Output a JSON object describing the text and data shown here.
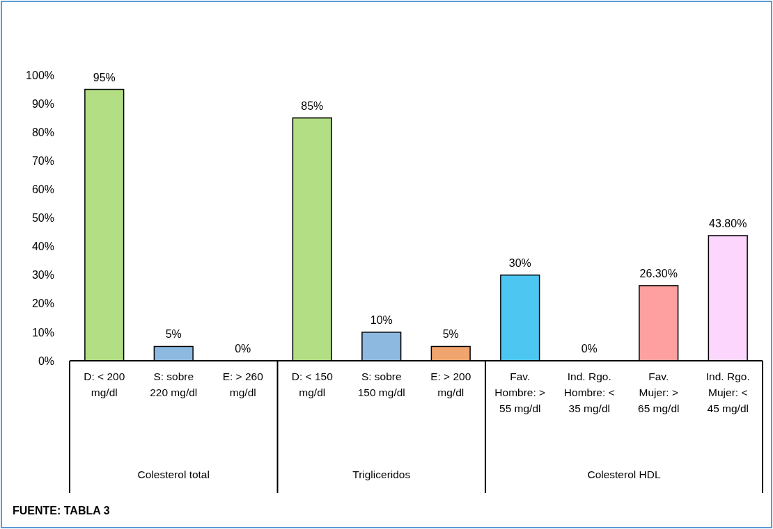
{
  "chart_data": {
    "type": "bar",
    "categories": [
      "D: < 200 mg/dl",
      "S: sobre 220 mg/dl",
      "E: > 260 mg/dl",
      "D: < 150 mg/dl",
      "S: sobre 150 mg/dl",
      "E: > 200 mg/dl",
      "Fav. Hombre: > 55 mg/dl",
      "Ind. Rgo. Hombre: < 35 mg/dl",
      "Fav. Mujer: > 65 mg/dl",
      "Ind. Rgo. Mujer: < 45 mg/dl"
    ],
    "values": [
      95,
      5,
      0,
      85,
      10,
      5,
      30,
      0,
      26.3,
      43.8
    ],
    "colors": [
      "#b3de83",
      "#8db8e0",
      "#f0a56e",
      "#b3de83",
      "#8db8e0",
      "#f0a56e",
      "#4dc6f2",
      "#f0a56e",
      "#ffa0a0",
      "#fcd6fc"
    ],
    "value_labels": [
      "95%",
      "5%",
      "0%",
      "85%",
      "10%",
      "5%",
      "30%",
      "0%",
      "26.30%",
      "43.80%"
    ],
    "ylim": [
      0,
      100
    ],
    "yticks": [
      {
        "value": 0,
        "label": "0%"
      },
      {
        "value": 10,
        "label": "10%"
      },
      {
        "value": 20,
        "label": "20%"
      },
      {
        "value": 30,
        "label": "30%"
      },
      {
        "value": 40,
        "label": "40%"
      },
      {
        "value": 50,
        "label": "50%"
      },
      {
        "value": 60,
        "label": "60%"
      },
      {
        "value": 70,
        "label": "70%"
      },
      {
        "value": 80,
        "label": "80%"
      },
      {
        "value": 90,
        "label": "90%"
      },
      {
        "value": 100,
        "label": "100%"
      }
    ],
    "grid": false,
    "annotations": [
      "Colesterol total",
      "Trigliceridos",
      "Colesterol HDL",
      "FUENTE: TABLA 3"
    ]
  }
}
